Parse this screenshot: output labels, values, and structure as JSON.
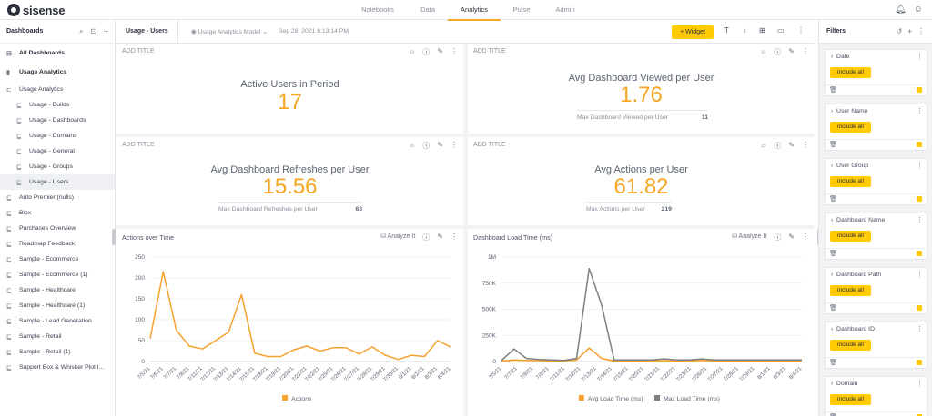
{
  "app": {
    "logo": "sisense"
  },
  "nav": {
    "tabs": [
      "Notebooks",
      "Data",
      "Analytics",
      "Pulse",
      "Admin"
    ],
    "active": "Analytics"
  },
  "topbar": {
    "bell_icon": "bell-icon",
    "user_icon": "user-icon"
  },
  "sidebar": {
    "title": "Dashboards",
    "items": [
      {
        "label": "All Dashboards",
        "type": "root",
        "icon": "dashboards-icon"
      },
      {
        "label": "Usage Analytics",
        "type": "root",
        "icon": "bar-chart-icon"
      },
      {
        "label": "Usage Analytics",
        "type": "folder",
        "icon": "folder-icon"
      },
      {
        "label": "Usage - Builds",
        "type": "child",
        "icon": "dashboard-icon"
      },
      {
        "label": "Usage - Dashboards",
        "type": "child",
        "icon": "dashboard-icon"
      },
      {
        "label": "Usage - Domains",
        "type": "child",
        "icon": "dashboard-icon"
      },
      {
        "label": "Usage - General",
        "type": "child",
        "icon": "dashboard-icon"
      },
      {
        "label": "Usage - Groups",
        "type": "child",
        "icon": "dashboard-icon"
      },
      {
        "label": "Usage - Users",
        "type": "child",
        "icon": "dashboard-icon",
        "selected": true
      },
      {
        "label": "Auto Premier (nulls)",
        "type": "item",
        "icon": "dashboard-icon"
      },
      {
        "label": "Blox",
        "type": "item",
        "icon": "dashboard-icon"
      },
      {
        "label": "Purchases Overview",
        "type": "item",
        "icon": "dashboard-icon"
      },
      {
        "label": "Roadmap Feedback",
        "type": "item",
        "icon": "dashboard-icon"
      },
      {
        "label": "Sample - Ecommerce",
        "type": "item",
        "icon": "dashboard-icon"
      },
      {
        "label": "Sample - Ecommerce (1)",
        "type": "item",
        "icon": "dashboard-icon"
      },
      {
        "label": "Sample - Healthcare",
        "type": "item",
        "icon": "dashboard-icon"
      },
      {
        "label": "Sample - Healthcare (1)",
        "type": "item",
        "icon": "dashboard-icon"
      },
      {
        "label": "Sample - Lead Generation",
        "type": "item",
        "icon": "dashboard-icon"
      },
      {
        "label": "Sample - Retail",
        "type": "item",
        "icon": "dashboard-icon"
      },
      {
        "label": "Sample - Retail (1)",
        "type": "item",
        "icon": "dashboard-icon"
      },
      {
        "label": "Support Box & Whisker Plot I...",
        "type": "item",
        "icon": "dashboard-icon"
      }
    ]
  },
  "header": {
    "title": "Usage - Users",
    "model": "Usage Analytics Model",
    "date": "Sep 28, 2021 6:13:14 PM",
    "widget_button": "+ Widget"
  },
  "widgets": {
    "add_title": "ADD TITLE",
    "analyze_it": "Analyze It",
    "indicators": [
      {
        "title": "Active Users in Period",
        "value": "17"
      },
      {
        "title": "Avg Dashboard Viewed per User",
        "value": "1.76",
        "secondary_label": "Max Dashboard Viewed per User",
        "secondary_value": "11"
      },
      {
        "title": "Avg Dashboard Refreshes per User",
        "value": "15.56",
        "secondary_label": "Max Dashboard Refreshes per User",
        "secondary_value": "63"
      },
      {
        "title": "Avg Actions per User",
        "value": "61.82",
        "secondary_label": "Max Actions per User",
        "secondary_value": "219"
      }
    ]
  },
  "chart_data": [
    {
      "type": "line",
      "title": "Actions over Time",
      "x": [
        "7/5/21",
        "7/6/21",
        "7/7/21",
        "7/8/21",
        "7/11/21",
        "7/12/21",
        "7/13/21",
        "7/14/21",
        "7/15/21",
        "7/18/21",
        "7/19/21",
        "7/20/21",
        "7/21/21",
        "7/22/21",
        "7/25/21",
        "7/26/21",
        "7/27/21",
        "7/28/21",
        "7/29/21",
        "7/30/21",
        "8/1/21",
        "8/2/21",
        "8/3/21",
        "8/4/21"
      ],
      "x_tick_labels": [
        "7/5/21",
        "7/6/21",
        "7/7/21",
        "7/8/21",
        "7/11/21",
        "7/12/21",
        "7/13/21",
        "7/14/21",
        "7/15/21",
        "7/18/21",
        "7/19/21",
        "7/20/21",
        "7/21/21",
        "7/22/21",
        "7/25/21",
        "7/26/21",
        "7/27/21",
        "7/28/21",
        "7/29/21",
        "7/30/21",
        "8/1/21",
        "8/2/21",
        "8/3/21",
        "8/4/21"
      ],
      "series": [
        {
          "name": "Actions",
          "color": "#f7a12f",
          "values": [
            55,
            215,
            75,
            37,
            30,
            50,
            70,
            160,
            20,
            12,
            12,
            28,
            37,
            25,
            33,
            33,
            18,
            35,
            15,
            5,
            15,
            12,
            50,
            35
          ]
        }
      ],
      "ylim": [
        0,
        250
      ],
      "yticks": [
        "0",
        "50",
        "100",
        "150",
        "200",
        "250"
      ],
      "legend": "bottom"
    },
    {
      "type": "line",
      "title": "Dashboard Load Time (ms)",
      "x": [
        "7/5/21",
        "7/6/21",
        "7/7/21",
        "7/8/21",
        "7/9/21",
        "7/11/21",
        "7/12/21",
        "7/13/21",
        "7/14/21",
        "7/15/21",
        "7/16/21",
        "7/20/21",
        "7/21/21",
        "7/22/21",
        "7/23/21",
        "7/25/21",
        "7/26/21",
        "7/27/21",
        "7/28/21",
        "7/29/21",
        "7/30/21",
        "8/1/21",
        "8/2/21",
        "8/3/21",
        "8/4/21"
      ],
      "x_tick_labels": [
        "7/5/21",
        "7/7/21",
        "7/8/21",
        "7/9/21",
        "7/11/21",
        "7/12/21",
        "7/13/21",
        "7/14/21",
        "7/15/21",
        "7/20/21",
        "7/21/21",
        "7/22/21",
        "7/23/21",
        "7/26/21",
        "7/27/21",
        "7/28/21",
        "7/29/21",
        "8/1/21",
        "8/3/21",
        "8/4/21"
      ],
      "series": [
        {
          "name": "Avg Load Time (ms)",
          "color": "#f7a12f",
          "values": [
            5000,
            15000,
            10000,
            8000,
            6000,
            5000,
            15000,
            130000,
            30000,
            5000,
            5000,
            5000,
            5000,
            8000,
            5000,
            5000,
            10000,
            5000,
            5000,
            5000,
            5000,
            5000,
            5000,
            5000,
            5000
          ]
        },
        {
          "name": "Max Load Time (ms)",
          "color": "#7f7f7f",
          "values": [
            10000,
            120000,
            30000,
            20000,
            15000,
            10000,
            30000,
            890000,
            540000,
            15000,
            15000,
            15000,
            15000,
            25000,
            15000,
            15000,
            25000,
            15000,
            15000,
            15000,
            15000,
            15000,
            15000,
            15000,
            15000
          ]
        }
      ],
      "ylim": [
        0,
        1000000
      ],
      "yticks": [
        "0",
        "250K",
        "500K",
        "750K",
        "1M"
      ],
      "legend": "bottom"
    }
  ],
  "filters": {
    "title": "Filters",
    "include_label": "include all",
    "items": [
      "Date",
      "User Name",
      "User Group",
      "Dashboard Name",
      "Dashboard Path",
      "Dashboard ID",
      "Domain"
    ]
  }
}
